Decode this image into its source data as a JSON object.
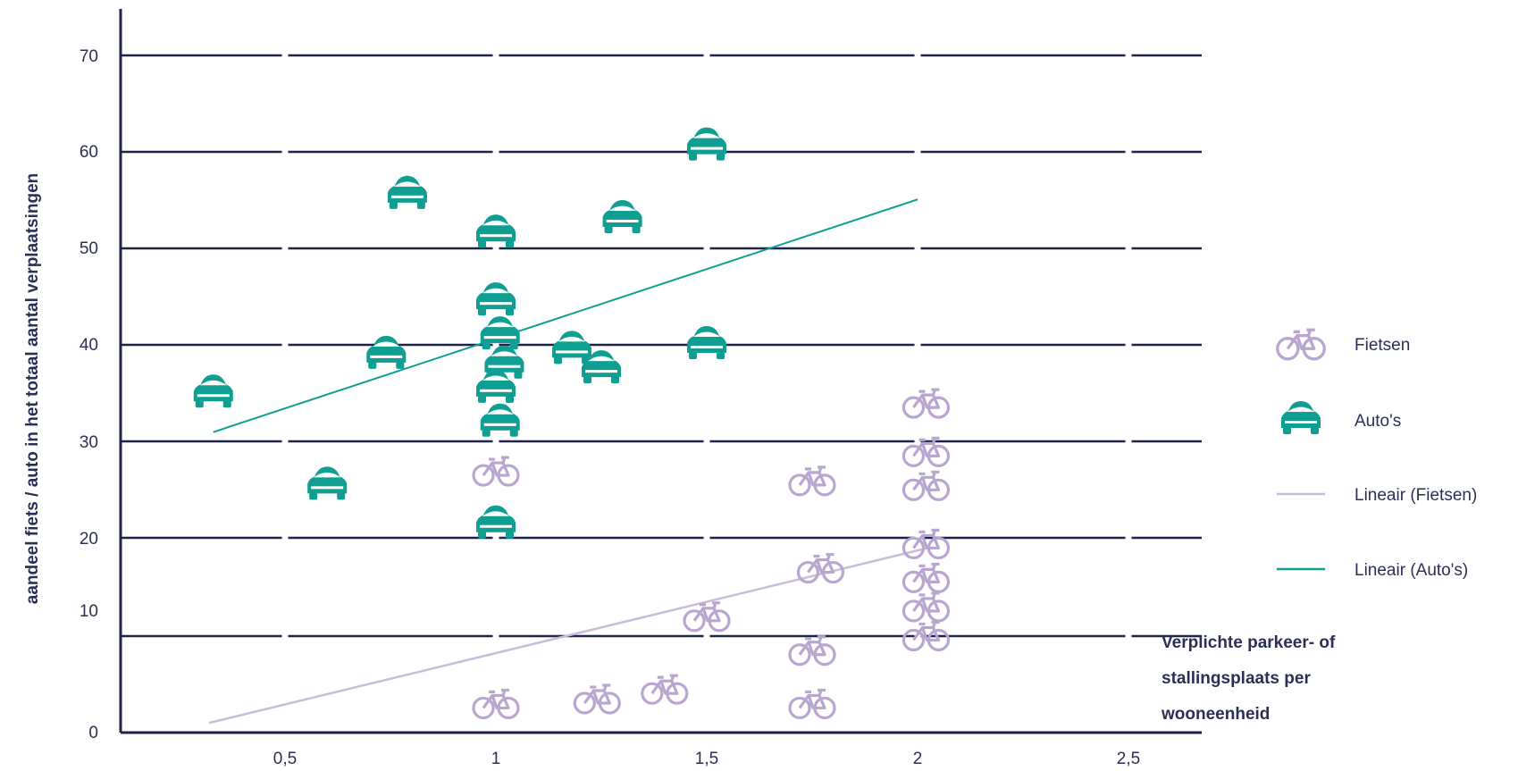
{
  "chart_data": {
    "type": "scatter",
    "ylabel": "aandeel fiets / auto in het totaal aantal verplaatsingen",
    "xlabel_lines": [
      "Verplichte parkeer- of",
      "stallingsplaats per",
      "wooneenheid"
    ],
    "x_ticks": [
      {
        "value": 0.5,
        "label": "0,5"
      },
      {
        "value": 1,
        "label": "1"
      },
      {
        "value": 1.5,
        "label": "1,5"
      },
      {
        "value": 2,
        "label": "2"
      },
      {
        "value": 2.5,
        "label": "2,5"
      }
    ],
    "y_ticks": [
      {
        "value": 0,
        "label": "0"
      },
      {
        "value": 10,
        "label": "10"
      },
      {
        "value": 20,
        "label": "20"
      },
      {
        "value": 30,
        "label": "30"
      },
      {
        "value": 40,
        "label": "40"
      },
      {
        "value": 50,
        "label": "50"
      },
      {
        "value": 60,
        "label": "60"
      },
      {
        "value": 70,
        "label": "70"
      }
    ],
    "ylim": [
      0,
      72
    ],
    "grid": true,
    "series": [
      {
        "name": "Fietsen",
        "marker": "bike-icon",
        "color": "#b9a6d0",
        "points": [
          {
            "x": 1.0,
            "y": 27.0
          },
          {
            "x": 1.0,
            "y": 3.0
          },
          {
            "x": 1.24,
            "y": 3.5
          },
          {
            "x": 1.4,
            "y": 4.5
          },
          {
            "x": 1.5,
            "y": 12.0
          },
          {
            "x": 1.75,
            "y": 26.0
          },
          {
            "x": 1.77,
            "y": 17.0
          },
          {
            "x": 1.75,
            "y": 8.5
          },
          {
            "x": 1.75,
            "y": 3.0
          },
          {
            "x": 2.02,
            "y": 34.0
          },
          {
            "x": 2.02,
            "y": 29.0
          },
          {
            "x": 2.02,
            "y": 25.5
          },
          {
            "x": 2.02,
            "y": 19.5
          },
          {
            "x": 2.02,
            "y": 16.0
          },
          {
            "x": 2.02,
            "y": 13.0
          },
          {
            "x": 2.02,
            "y": 10.0
          }
        ]
      },
      {
        "name": "Auto's",
        "marker": "car-icon",
        "color": "#0e9f92",
        "points": [
          {
            "x": 0.33,
            "y": 35.0
          },
          {
            "x": 0.6,
            "y": 25.5
          },
          {
            "x": 0.74,
            "y": 39.0
          },
          {
            "x": 0.79,
            "y": 55.5
          },
          {
            "x": 1.0,
            "y": 51.5
          },
          {
            "x": 1.0,
            "y": 44.5
          },
          {
            "x": 1.01,
            "y": 41.0
          },
          {
            "x": 1.02,
            "y": 38.0
          },
          {
            "x": 1.0,
            "y": 35.5
          },
          {
            "x": 1.01,
            "y": 32.0
          },
          {
            "x": 1.0,
            "y": 21.5
          },
          {
            "x": 1.18,
            "y": 39.5
          },
          {
            "x": 1.25,
            "y": 37.5
          },
          {
            "x": 1.3,
            "y": 53.0
          },
          {
            "x": 1.5,
            "y": 60.5
          },
          {
            "x": 1.5,
            "y": 40.0
          }
        ]
      }
    ],
    "trendlines": [
      {
        "name": "Lineair (Fietsen)",
        "color": "#c9bbdc",
        "from": {
          "x": 0.32,
          "y": 1.0
        },
        "to": {
          "x": 2.02,
          "y": 19.0
        }
      },
      {
        "name": "Lineair (Auto's)",
        "color": "#0e9f92",
        "from": {
          "x": 0.33,
          "y": 31.0
        },
        "to": {
          "x": 2.0,
          "y": 55.0
        }
      }
    ],
    "legend": {
      "placement": "right",
      "items": [
        {
          "label": "Fietsen",
          "kind": "bike-icon",
          "color": "#b9a6d0"
        },
        {
          "label": "Auto's",
          "kind": "car-icon",
          "color": "#0e9f92"
        },
        {
          "label": "Lineair (Fietsen)",
          "kind": "line",
          "color": "#c9bbdc"
        },
        {
          "label": "Lineair (Auto's)",
          "kind": "line",
          "color": "#0e9f92"
        }
      ]
    },
    "colors": {
      "axis": "#1f2347",
      "grid": "#1f2347",
      "text": "#2b2f55"
    }
  }
}
